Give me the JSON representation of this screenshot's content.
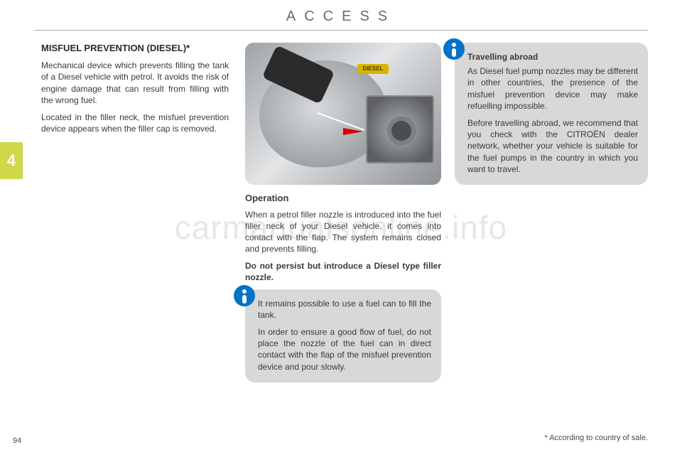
{
  "header": {
    "title": "ACCESS"
  },
  "sideTab": {
    "number": "4",
    "bg": "#cfd84a"
  },
  "col1": {
    "title": "MISFUEL PREVENTION (DIESEL)*",
    "p1": "Mechanical device which prevents filling the tank of a Diesel vehicle with petrol. It avoids the risk of engine damage that can result from filling with the wrong fuel.",
    "p2": "Located in the filler neck, the misfuel prevention device appears when the filler cap is removed."
  },
  "col2": {
    "dieselBadge": "DIESEL",
    "subTitle": "Operation",
    "p1": "When a petrol filler nozzle is introduced into the fuel filler neck of your Diesel vehicle, it comes into contact with the flap. The system remains closed and prevents filling.",
    "p2": "Do not persist but introduce a Diesel type filler nozzle.",
    "box": {
      "p1": "It remains possible to use a fuel can to fill the tank.",
      "p2": "In order to ensure a good flow of fuel, do not place the nozzle of the fuel can in direct contact with the flap of the misfuel prevention device and pour slowly."
    }
  },
  "col3": {
    "box": {
      "title": "Travelling abroad",
      "p1": "As Diesel fuel pump nozzles may be different in other countries, the presence of the misfuel prevention device may make refuelling impossible.",
      "p2": "Before travelling abroad, we recommend that you check with the CITROËN dealer network, whether your vehicle is suitable for the fuel pumps in the country in which you want to travel."
    }
  },
  "footnote": "* According to country of sale.",
  "pageNumber": "94",
  "watermark": "carmanualsonline.info"
}
